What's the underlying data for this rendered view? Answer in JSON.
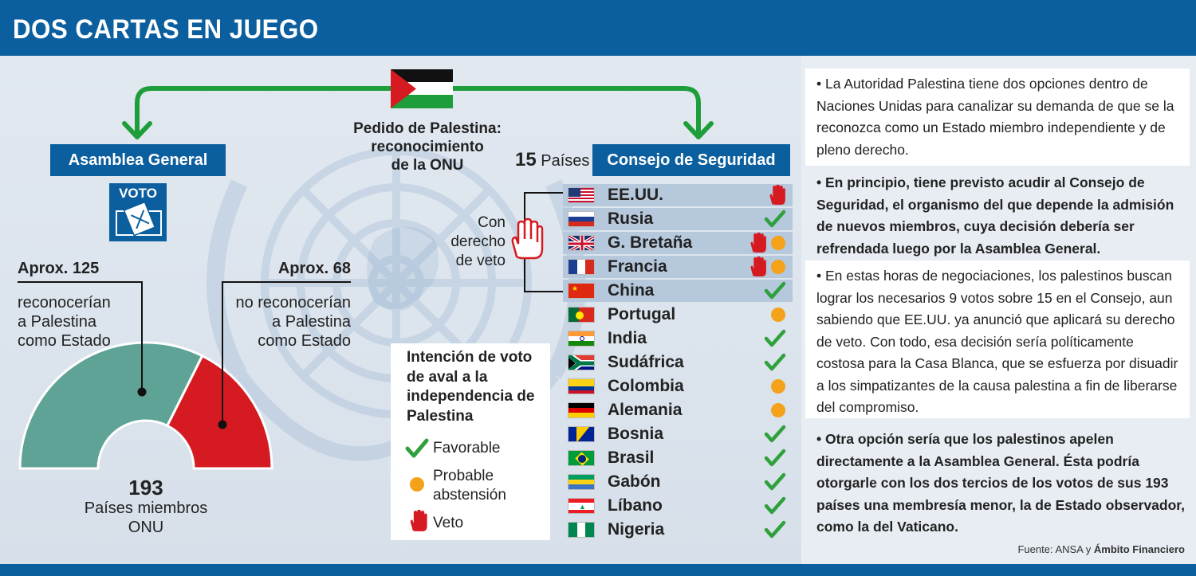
{
  "header": {
    "title": "DOS CARTAS EN JUEGO"
  },
  "request": {
    "line1": "Pedido de Palestina:",
    "line2": "reconocimiento",
    "line3": "de la ONU"
  },
  "assembly": {
    "title": "Asamblea General",
    "vote_label": "VOTO",
    "yes": {
      "count_label": "Aprox. 125",
      "desc1": "reconocerían",
      "desc2": "a Palestina",
      "desc3": "como Estado"
    },
    "no": {
      "count_label": "Aprox. 68",
      "desc1": "no reconocerían",
      "desc2": "a Palestina",
      "desc3": "como Estado"
    },
    "total": "193",
    "total_label1": "Países miembros",
    "total_label2": "ONU",
    "yes_value": 125,
    "no_value": 68,
    "yes_color": "#5fa396",
    "no_color": "#d61a21"
  },
  "council": {
    "count": "15",
    "count_label": "Países",
    "title": "Consejo de Seguridad",
    "veto_label1": "Con",
    "veto_label2": "derecho",
    "veto_label3": "de veto",
    "countries": [
      {
        "name": "EE.UU.",
        "flag": "us",
        "votes": [
          "veto"
        ],
        "veto_power": true
      },
      {
        "name": "Rusia",
        "flag": "ru",
        "votes": [
          "favor"
        ],
        "veto_power": true
      },
      {
        "name": "G. Bretaña",
        "flag": "gb",
        "votes": [
          "veto",
          "abst"
        ],
        "veto_power": true
      },
      {
        "name": "Francia",
        "flag": "fr",
        "votes": [
          "veto",
          "abst"
        ],
        "veto_power": true
      },
      {
        "name": "China",
        "flag": "cn",
        "votes": [
          "favor"
        ],
        "veto_power": true
      },
      {
        "name": "Portugal",
        "flag": "pt",
        "votes": [
          "abst"
        ],
        "veto_power": false
      },
      {
        "name": "India",
        "flag": "in",
        "votes": [
          "favor"
        ],
        "veto_power": false
      },
      {
        "name": "Sudáfrica",
        "flag": "za",
        "votes": [
          "favor"
        ],
        "veto_power": false
      },
      {
        "name": "Colombia",
        "flag": "co",
        "votes": [
          "abst"
        ],
        "veto_power": false
      },
      {
        "name": "Alemania",
        "flag": "de",
        "votes": [
          "abst"
        ],
        "veto_power": false
      },
      {
        "name": "Bosnia",
        "flag": "ba",
        "votes": [
          "favor"
        ],
        "veto_power": false
      },
      {
        "name": "Brasil",
        "flag": "br",
        "votes": [
          "favor"
        ],
        "veto_power": false
      },
      {
        "name": "Gabón",
        "flag": "ga",
        "votes": [
          "favor"
        ],
        "veto_power": false
      },
      {
        "name": "Líbano",
        "flag": "lb",
        "votes": [
          "favor"
        ],
        "veto_power": false
      },
      {
        "name": "Nigeria",
        "flag": "ng",
        "votes": [
          "favor"
        ],
        "veto_power": false
      }
    ]
  },
  "legend": {
    "title1": "Intención de voto",
    "title2": "de aval a la",
    "title3": "independencia de",
    "title4": "Palestina",
    "favor": "Favorable",
    "abst1": "Probable",
    "abst2": "abstensión",
    "veto": "Veto"
  },
  "colors": {
    "blue": "#0b5f9e",
    "green": "#1e9e3a",
    "check": "#2fa13c",
    "abstain": "#f5a21b",
    "veto": "#d61a21"
  },
  "paragraphs": [
    {
      "text": "• La Autoridad Palestina tiene dos opciones dentro de Naciones Unidas para canalizar su demanda de que se la reconozca como un Estado miembro independiente y de pleno derecho.",
      "bold": false
    },
    {
      "text": "• En principio, tiene previsto acudir al Consejo de Seguridad, el organismo del que depende la admisión de nuevos miembros, cuya decisión debería ser refrendada luego por la Asamblea General.",
      "bold": true
    },
    {
      "text": "• En estas horas de negociaciones, los palestinos buscan lograr los necesarios 9 votos sobre 15 en el Consejo, aun sabiendo que EE.UU. ya anunció que aplicará su derecho de veto. Con todo, esa decisión sería políticamente costosa para la Casa Blanca, que se esfuerza por disuadir a los simpatizantes de la causa palestina a fin de liberarse del compromiso.",
      "bold": false
    },
    {
      "text": "• Otra opción sería que los palestinos apelen directamente a la Asamblea General. Ésta podría otorgarle con los dos tercios de los votos de sus 193 países una membresía menor, la de Estado observador, como la del Vaticano.",
      "bold": true
    }
  ],
  "source": {
    "prefix": "Fuente: ANSA y ",
    "bold": "Ámbito Financiero"
  }
}
